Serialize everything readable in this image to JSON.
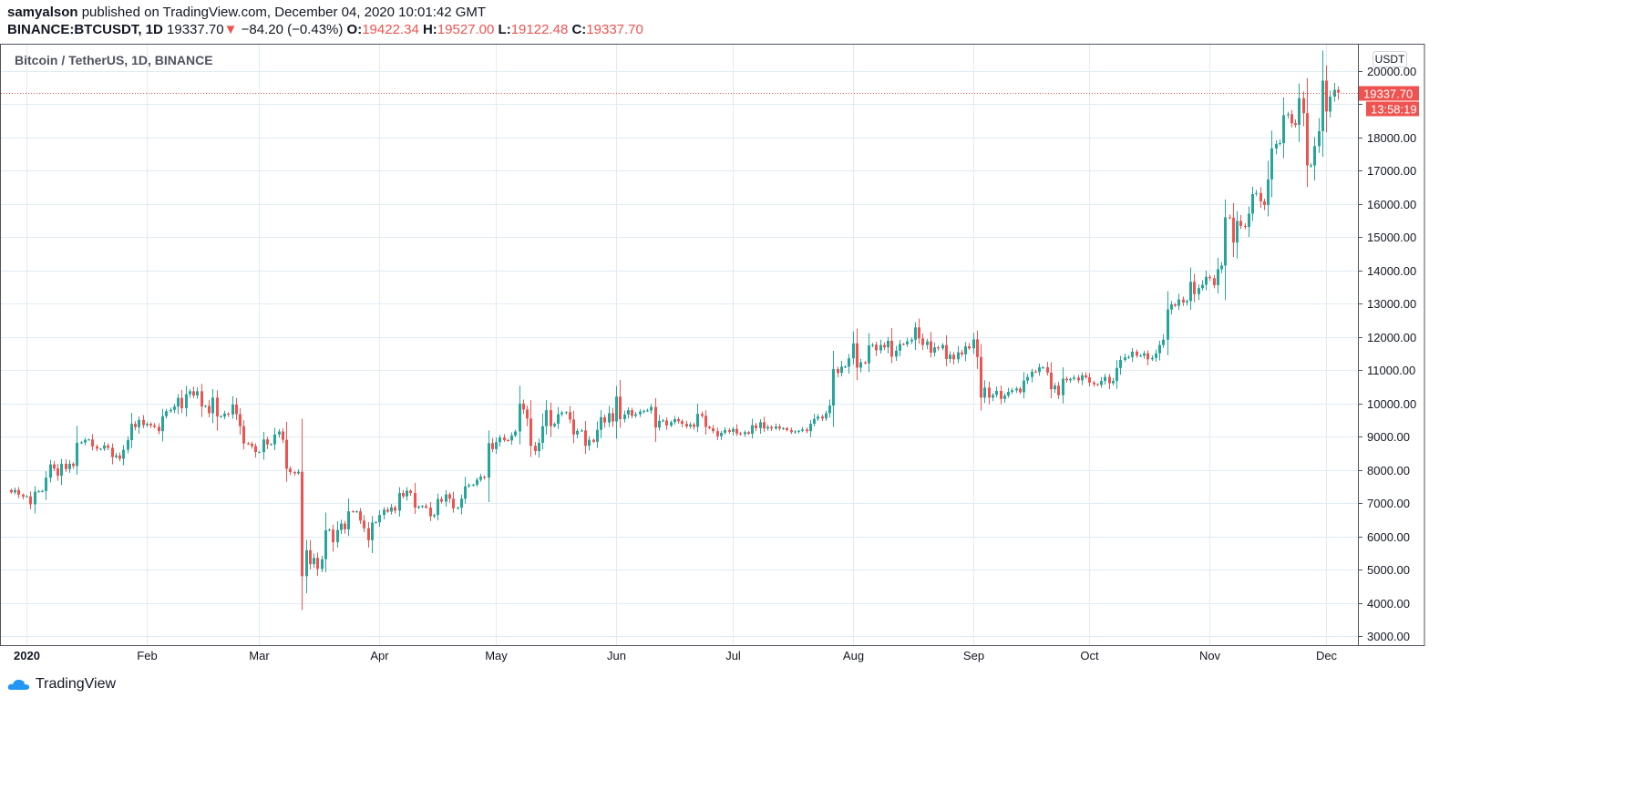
{
  "header": {
    "author": "samyalson",
    "published": "published on TradingView.com, December 04, 2020 10:01:42 GMT",
    "symbol": "BINANCE:BTCUSDT, 1D",
    "last": "19337.70",
    "change": "−84.20 (−0.43%)",
    "o_label": "O:",
    "o": "19422.34",
    "h_label": "H:",
    "h": "19527.00",
    "l_label": "L:",
    "l": "19122.48",
    "c_label": "C:",
    "c": "19337.70"
  },
  "footer": {
    "brand": "TradingView"
  },
  "chart_data": {
    "type": "candlestick",
    "title": "Bitcoin / TetherUS, 1D, BINANCE",
    "currency": "USDT",
    "start_date": "2019-12-28",
    "ylim": [
      2800,
      20600
    ],
    "yticks": [
      3000,
      4000,
      5000,
      6000,
      7000,
      8000,
      9000,
      10000,
      11000,
      12000,
      13000,
      14000,
      15000,
      16000,
      17000,
      18000,
      19000,
      20000
    ],
    "ytick_labels": [
      "3000.00",
      "4000.00",
      "5000.00",
      "6000.00",
      "7000.00",
      "8000.00",
      "9000.00",
      "10000.00",
      "11000.00",
      "12000.00",
      "13000.00",
      "14000.00",
      "15000.00",
      "16000.00",
      "17000.00",
      "18000.00",
      "",
      "20000.00"
    ],
    "xticks": [
      {
        "label": "2020",
        "date": "2020-01-01"
      },
      {
        "label": "Feb",
        "date": "2020-02-01"
      },
      {
        "label": "Mar",
        "date": "2020-03-01"
      },
      {
        "label": "Apr",
        "date": "2020-04-01"
      },
      {
        "label": "May",
        "date": "2020-05-01"
      },
      {
        "label": "Jun",
        "date": "2020-06-01"
      },
      {
        "label": "Jul",
        "date": "2020-07-01"
      },
      {
        "label": "Aug",
        "date": "2020-08-01"
      },
      {
        "label": "Sep",
        "date": "2020-09-01"
      },
      {
        "label": "Oct",
        "date": "2020-10-01"
      },
      {
        "label": "Nov",
        "date": "2020-11-01"
      },
      {
        "label": "Dec",
        "date": "2020-12-01"
      }
    ],
    "close": [
      7320,
      7390,
      7250,
      7190,
      7200,
      6960,
      7340,
      7350,
      7360,
      7760,
      8160,
      8040,
      7820,
      8180,
      8020,
      8180,
      8110,
      8810,
      8820,
      8900,
      8910,
      8700,
      8630,
      8630,
      8730,
      8660,
      8380,
      8430,
      8330,
      8600,
      8890,
      9380,
      9280,
      9500,
      9340,
      9380,
      9330,
      9290,
      9160,
      9610,
      9760,
      9800,
      9900,
      10160,
      9850,
      10270,
      10360,
      10230,
      10360,
      9900,
      9920,
      9700,
      10170,
      9600,
      9600,
      9690,
      9660,
      9960,
      9670,
      9310,
      8790,
      8780,
      8710,
      8530,
      8530,
      8910,
      8760,
      8760,
      9060,
      9150,
      8900,
      8030,
      7930,
      7890,
      7940,
      4800,
      5580,
      5160,
      5350,
      5020,
      5310,
      6180,
      6200,
      5820,
      6190,
      6380,
      6210,
      6750,
      6740,
      6750,
      6470,
      6240,
      5880,
      6410,
      6420,
      6640,
      6800,
      6740,
      6870,
      6770,
      7300,
      7200,
      7370,
      7300,
      6860,
      6890,
      6910,
      6860,
      6600,
      6640,
      7120,
      7040,
      7260,
      7130,
      6840,
      6860,
      7130,
      7500,
      7540,
      7550,
      7700,
      7790,
      7760,
      8800,
      8620,
      8830,
      8970,
      8890,
      8880,
      9030,
      9150,
      9990,
      9810,
      9540,
      8720,
      8560,
      8810,
      9310,
      9790,
      9310,
      9380,
      9670,
      9720,
      9730,
      9510,
      9060,
      9170,
      9180,
      8720,
      8900,
      8840,
      9200,
      9580,
      9420,
      9700,
      9450,
      10200,
      9520,
      9660,
      9790,
      9620,
      9670,
      9750,
      9770,
      9780,
      9890,
      9270,
      9470,
      9480,
      9330,
      9430,
      9520,
      9460,
      9380,
      9300,
      9360,
      9290,
      9680,
      9620,
      9290,
      9250,
      9160,
      9010,
      9110,
      9190,
      9140,
      9230,
      9090,
      9070,
      9130,
      9080,
      9340,
      9250,
      9430,
      9240,
      9290,
      9240,
      9300,
      9240,
      9250,
      9190,
      9130,
      9150,
      9170,
      9210,
      9160,
      9380,
      9530,
      9600,
      9540,
      9700,
      9930,
      11030,
      10910,
      11100,
      11100,
      11350,
      11800,
      11070,
      11230,
      11200,
      11740,
      11760,
      11590,
      11750,
      11680,
      11880,
      11400,
      11580,
      11780,
      11770,
      11860,
      11910,
      12280,
      11950,
      11750,
      11860,
      11520,
      11680,
      11650,
      11750,
      11330,
      11460,
      11320,
      11530,
      11470,
      11710,
      11650,
      11920,
      11390,
      10170,
      10470,
      10170,
      10250,
      10370,
      10130,
      10230,
      10340,
      10390,
      10440,
      10330,
      10680,
      10790,
      10950,
      10940,
      11080,
      11080,
      10920,
      10420,
      10530,
      10240,
      10740,
      10690,
      10730,
      10770,
      10690,
      10840,
      10780,
      10620,
      10570,
      10550,
      10670,
      10790,
      10600,
      10670,
      11060,
      11300,
      11380,
      11390,
      11550,
      11430,
      11430,
      11500,
      11320,
      11360,
      11500,
      11750,
      11910,
      12820,
      12970,
      12930,
      13120,
      13030,
      13070,
      13650,
      13280,
      13460,
      13560,
      13800,
      13760,
      13550,
      14030,
      14140,
      15590,
      15580,
      14830,
      15480,
      15330,
      15300,
      15700,
      16290,
      16320,
      16070,
      15960,
      16730,
      17660,
      17800,
      17820,
      18660,
      18690,
      18420,
      18370,
      19170,
      18720,
      17150,
      17150,
      17730,
      18180,
      19700,
      18770,
      19220,
      19422.34,
      19337.7
    ],
    "last_candle": {
      "open": 19422.34,
      "high": 19527.0,
      "low": 19122.48,
      "close": 19337.7
    },
    "last_price_label": "19337.70",
    "countdown": "13:58:19",
    "colors": {
      "up": "#26a69a",
      "down": "#ef5350",
      "grid": "#e1ecf2"
    }
  }
}
